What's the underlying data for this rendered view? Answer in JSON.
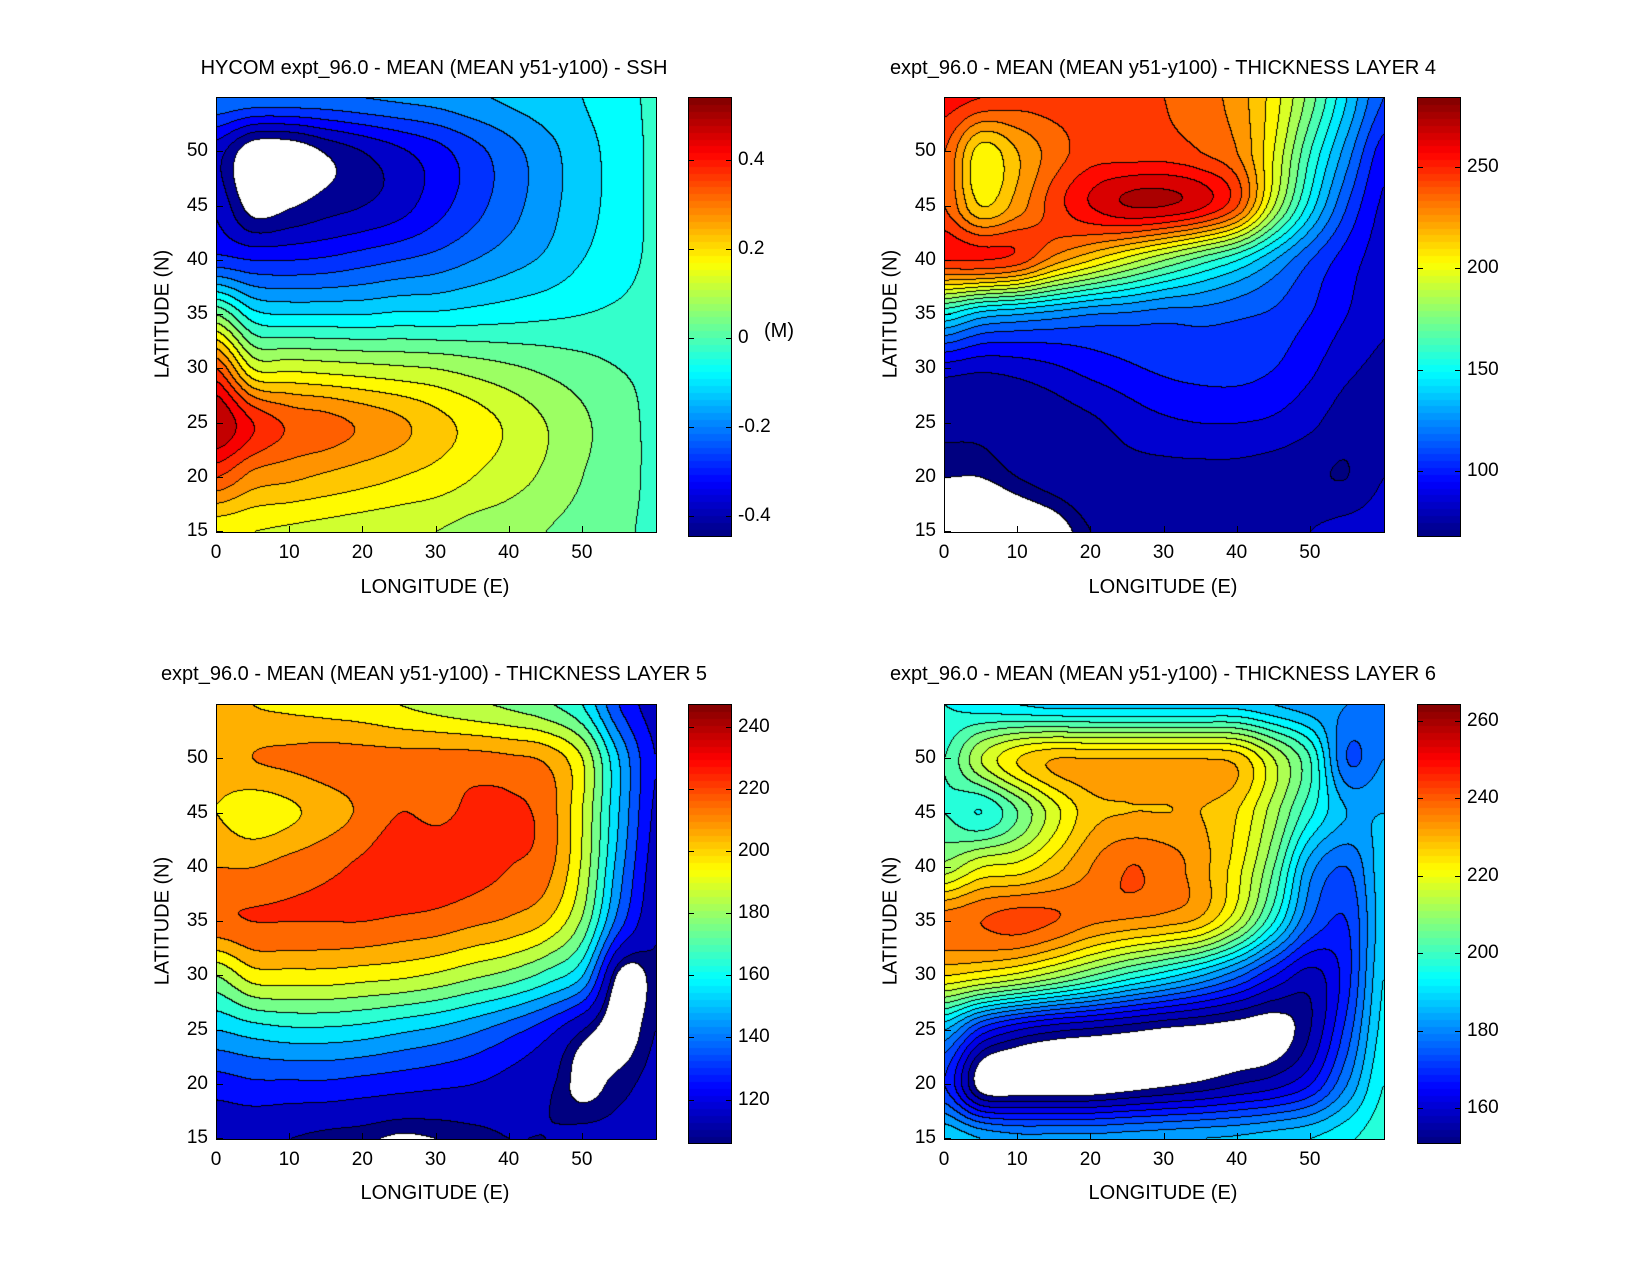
{
  "chart_data": [
    {
      "type": "heatmap",
      "style": "filled-contour",
      "title": "HYCOM expt_96.0 - MEAN (MEAN y51-y100) - SSH",
      "xlabel": "LONGITUDE (E)",
      "ylabel": "LATITUDE (N)",
      "xlim": [
        0,
        60
      ],
      "ylim": [
        15,
        55
      ],
      "xticks": [
        0,
        10,
        20,
        30,
        40,
        50
      ],
      "yticks": [
        15,
        20,
        25,
        30,
        35,
        40,
        45,
        50
      ],
      "colorbar": {
        "clim": [
          -0.445,
          0.54
        ],
        "ticks": [
          -0.4,
          -0.2,
          0,
          0.2,
          0.4
        ],
        "tick_labels": [
          "-0.4",
          "-0.2",
          "0",
          "0.2",
          "0.4"
        ],
        "unit": "(M)"
      },
      "contour_interval": 0.05,
      "grid": {
        "lon": [
          0,
          5,
          10,
          15,
          20,
          25,
          30,
          35,
          40,
          45,
          50,
          55,
          60
        ],
        "lat": [
          55,
          50,
          45,
          40,
          35,
          30,
          25,
          20,
          15
        ],
        "values": [
          [
            -0.2,
            -0.21,
            -0.21,
            -0.21,
            -0.2,
            -0.19,
            -0.18,
            -0.16,
            -0.14,
            -0.12,
            -0.1,
            -0.07,
            -0.04
          ],
          [
            -0.38,
            -0.49,
            -0.49,
            -0.44,
            -0.4,
            -0.36,
            -0.32,
            -0.27,
            -0.22,
            -0.17,
            -0.12,
            -0.08,
            -0.04
          ],
          [
            -0.36,
            -0.47,
            -0.45,
            -0.42,
            -0.4,
            -0.37,
            -0.32,
            -0.27,
            -0.22,
            -0.17,
            -0.12,
            -0.08,
            -0.04
          ],
          [
            -0.28,
            -0.3,
            -0.3,
            -0.29,
            -0.27,
            -0.25,
            -0.23,
            -0.2,
            -0.17,
            -0.14,
            -0.1,
            -0.07,
            -0.04
          ],
          [
            0.05,
            -0.08,
            -0.1,
            -0.1,
            -0.1,
            -0.09,
            -0.09,
            -0.08,
            -0.07,
            -0.06,
            -0.05,
            -0.04,
            -0.03
          ],
          [
            0.35,
            0.15,
            0.14,
            0.13,
            0.12,
            0.11,
            0.1,
            0.08,
            0.06,
            0.04,
            0.02,
            0.0,
            -0.01
          ],
          [
            0.5,
            0.4,
            0.34,
            0.32,
            0.29,
            0.26,
            0.22,
            0.18,
            0.14,
            0.1,
            0.06,
            0.02,
            -0.01
          ],
          [
            0.35,
            0.28,
            0.26,
            0.24,
            0.22,
            0.2,
            0.18,
            0.15,
            0.12,
            0.09,
            0.05,
            0.02,
            -0.01
          ],
          [
            0.16,
            0.15,
            0.14,
            0.13,
            0.12,
            0.11,
            0.1,
            0.08,
            0.07,
            0.05,
            0.03,
            0.01,
            -0.01
          ]
        ]
      }
    },
    {
      "type": "heatmap",
      "style": "filled-contour",
      "title": "expt_96.0 - MEAN (MEAN y51-y100) - THICKNESS LAYER 4",
      "xlabel": "LONGITUDE (E)",
      "ylabel": "LATITUDE (N)",
      "xlim": [
        0,
        60
      ],
      "ylim": [
        15,
        55
      ],
      "xticks": [
        0,
        10,
        20,
        30,
        40,
        50
      ],
      "yticks": [
        15,
        20,
        25,
        30,
        35,
        40,
        45,
        50
      ],
      "colorbar": {
        "clim": [
          68,
          284
        ],
        "ticks": [
          100,
          150,
          200,
          250
        ],
        "tick_labels": [
          "100",
          "150",
          "200",
          "250"
        ]
      },
      "contour_interval": 10,
      "grid": {
        "lon": [
          0,
          5,
          10,
          15,
          20,
          25,
          30,
          35,
          40,
          45,
          50,
          55,
          60
        ],
        "lat": [
          55,
          50,
          45,
          40,
          35,
          30,
          25,
          20,
          15
        ],
        "values": [
          [
            255,
            250,
            245,
            245,
            245,
            245,
            240,
            235,
            225,
            205,
            175,
            140,
            110
          ],
          [
            240,
            205,
            220,
            235,
            245,
            245,
            245,
            240,
            230,
            200,
            160,
            125,
            95
          ],
          [
            240,
            210,
            225,
            245,
            260,
            270,
            270,
            262,
            240,
            190,
            145,
            110,
            88
          ],
          [
            250,
            250,
            245,
            225,
            210,
            195,
            180,
            165,
            150,
            130,
            110,
            95,
            85
          ],
          [
            150,
            135,
            130,
            125,
            120,
            118,
            115,
            115,
            112,
            108,
            100,
            90,
            82
          ],
          [
            85,
            82,
            84,
            88,
            94,
            98,
            102,
            104,
            104,
            100,
            92,
            82,
            78
          ],
          [
            72,
            72,
            74,
            75,
            78,
            84,
            88,
            90,
            90,
            88,
            82,
            75,
            78
          ],
          [
            68,
            68,
            70,
            72,
            74,
            76,
            76,
            76,
            76,
            74,
            72,
            70,
            80
          ],
          [
            62,
            62,
            64,
            66,
            70,
            72,
            72,
            72,
            74,
            76,
            80,
            84,
            86
          ]
        ]
      }
    },
    {
      "type": "heatmap",
      "style": "filled-contour",
      "title": "expt_96.0 - MEAN (MEAN y51-y100) - THICKNESS LAYER 5",
      "xlabel": "LONGITUDE (E)",
      "ylabel": "LATITUDE (N)",
      "xlim": [
        0,
        60
      ],
      "ylim": [
        15,
        55
      ],
      "xticks": [
        0,
        10,
        20,
        30,
        40,
        50
      ],
      "yticks": [
        15,
        20,
        25,
        30,
        35,
        40,
        45,
        50
      ],
      "colorbar": {
        "clim": [
          106,
          247
        ],
        "ticks": [
          120,
          140,
          160,
          180,
          200,
          220,
          240
        ],
        "tick_labels": [
          "120",
          "140",
          "160",
          "180",
          "200",
          "220",
          "240"
        ]
      },
      "contour_interval": 10,
      "grid": {
        "lon": [
          0,
          5,
          10,
          15,
          20,
          25,
          30,
          35,
          40,
          45,
          50,
          55,
          60
        ],
        "lat": [
          55,
          50,
          45,
          40,
          35,
          30,
          25,
          20,
          15
        ],
        "values": [
          [
            205,
            200,
            198,
            196,
            194,
            190,
            186,
            182,
            178,
            172,
            160,
            130,
            115
          ],
          [
            205,
            210,
            212,
            214,
            214,
            214,
            214,
            214,
            212,
            208,
            190,
            150,
            120
          ],
          [
            200,
            194,
            198,
            205,
            212,
            220,
            218,
            222,
            222,
            216,
            190,
            150,
            118
          ],
          [
            210,
            210,
            214,
            218,
            222,
            228,
            226,
            224,
            220,
            214,
            188,
            145,
            115
          ],
          [
            218,
            220,
            220,
            220,
            220,
            218,
            216,
            212,
            208,
            200,
            178,
            135,
            112
          ],
          [
            180,
            195,
            196,
            196,
            194,
            192,
            188,
            182,
            176,
            166,
            150,
            104,
            108
          ],
          [
            150,
            155,
            158,
            158,
            156,
            152,
            148,
            142,
            134,
            124,
            110,
            101,
            110
          ],
          [
            125,
            128,
            128,
            128,
            126,
            124,
            122,
            120,
            116,
            112,
            104,
            108,
            112
          ],
          [
            112,
            112,
            110,
            108,
            107,
            105,
            106,
            108,
            110,
            110,
            112,
            112,
            112
          ]
        ]
      }
    },
    {
      "type": "heatmap",
      "style": "filled-contour",
      "title": "expt_96.0 - MEAN (MEAN y51-y100) - THICKNESS LAYER 6",
      "xlabel": "LONGITUDE (E)",
      "ylabel": "LATITUDE (N)",
      "xlim": [
        0,
        60
      ],
      "ylim": [
        15,
        55
      ],
      "xticks": [
        0,
        10,
        20,
        30,
        40,
        50
      ],
      "yticks": [
        15,
        20,
        25,
        30,
        35,
        40,
        45,
        50
      ],
      "colorbar": {
        "clim": [
          151,
          264
        ],
        "ticks": [
          160,
          180,
          200,
          220,
          240,
          260
        ],
        "tick_labels": [
          "160",
          "180",
          "200",
          "220",
          "240",
          "260"
        ]
      },
      "contour_interval": 5,
      "grid": {
        "lon": [
          0,
          5,
          10,
          15,
          20,
          25,
          30,
          35,
          40,
          45,
          50,
          55,
          60
        ],
        "lat": [
          55,
          50,
          45,
          40,
          35,
          30,
          25,
          20,
          15
        ],
        "values": [
          [
            195,
            192,
            190,
            188,
            188,
            188,
            188,
            188,
            188,
            185,
            182,
            180,
            178
          ],
          [
            200,
            215,
            225,
            230,
            230,
            230,
            230,
            230,
            228,
            215,
            200,
            175,
            180
          ],
          [
            200,
            195,
            205,
            218,
            228,
            230,
            230,
            230,
            225,
            212,
            196,
            185,
            185
          ],
          [
            212,
            220,
            222,
            228,
            235,
            240,
            238,
            232,
            222,
            205,
            182,
            175,
            188
          ],
          [
            238,
            240,
            242,
            240,
            236,
            234,
            232,
            228,
            215,
            195,
            175,
            170,
            188
          ],
          [
            225,
            222,
            218,
            212,
            205,
            198,
            192,
            185,
            176,
            165,
            158,
            168,
            190
          ],
          [
            185,
            168,
            160,
            156,
            154,
            152,
            150,
            149,
            148,
            148,
            155,
            172,
            192
          ],
          [
            170,
            148,
            146,
            146,
            146,
            148,
            150,
            152,
            155,
            158,
            165,
            180,
            195
          ],
          [
            190,
            185,
            182,
            182,
            182,
            183,
            184,
            185,
            186,
            188,
            190,
            194,
            198
          ]
        ]
      }
    }
  ]
}
